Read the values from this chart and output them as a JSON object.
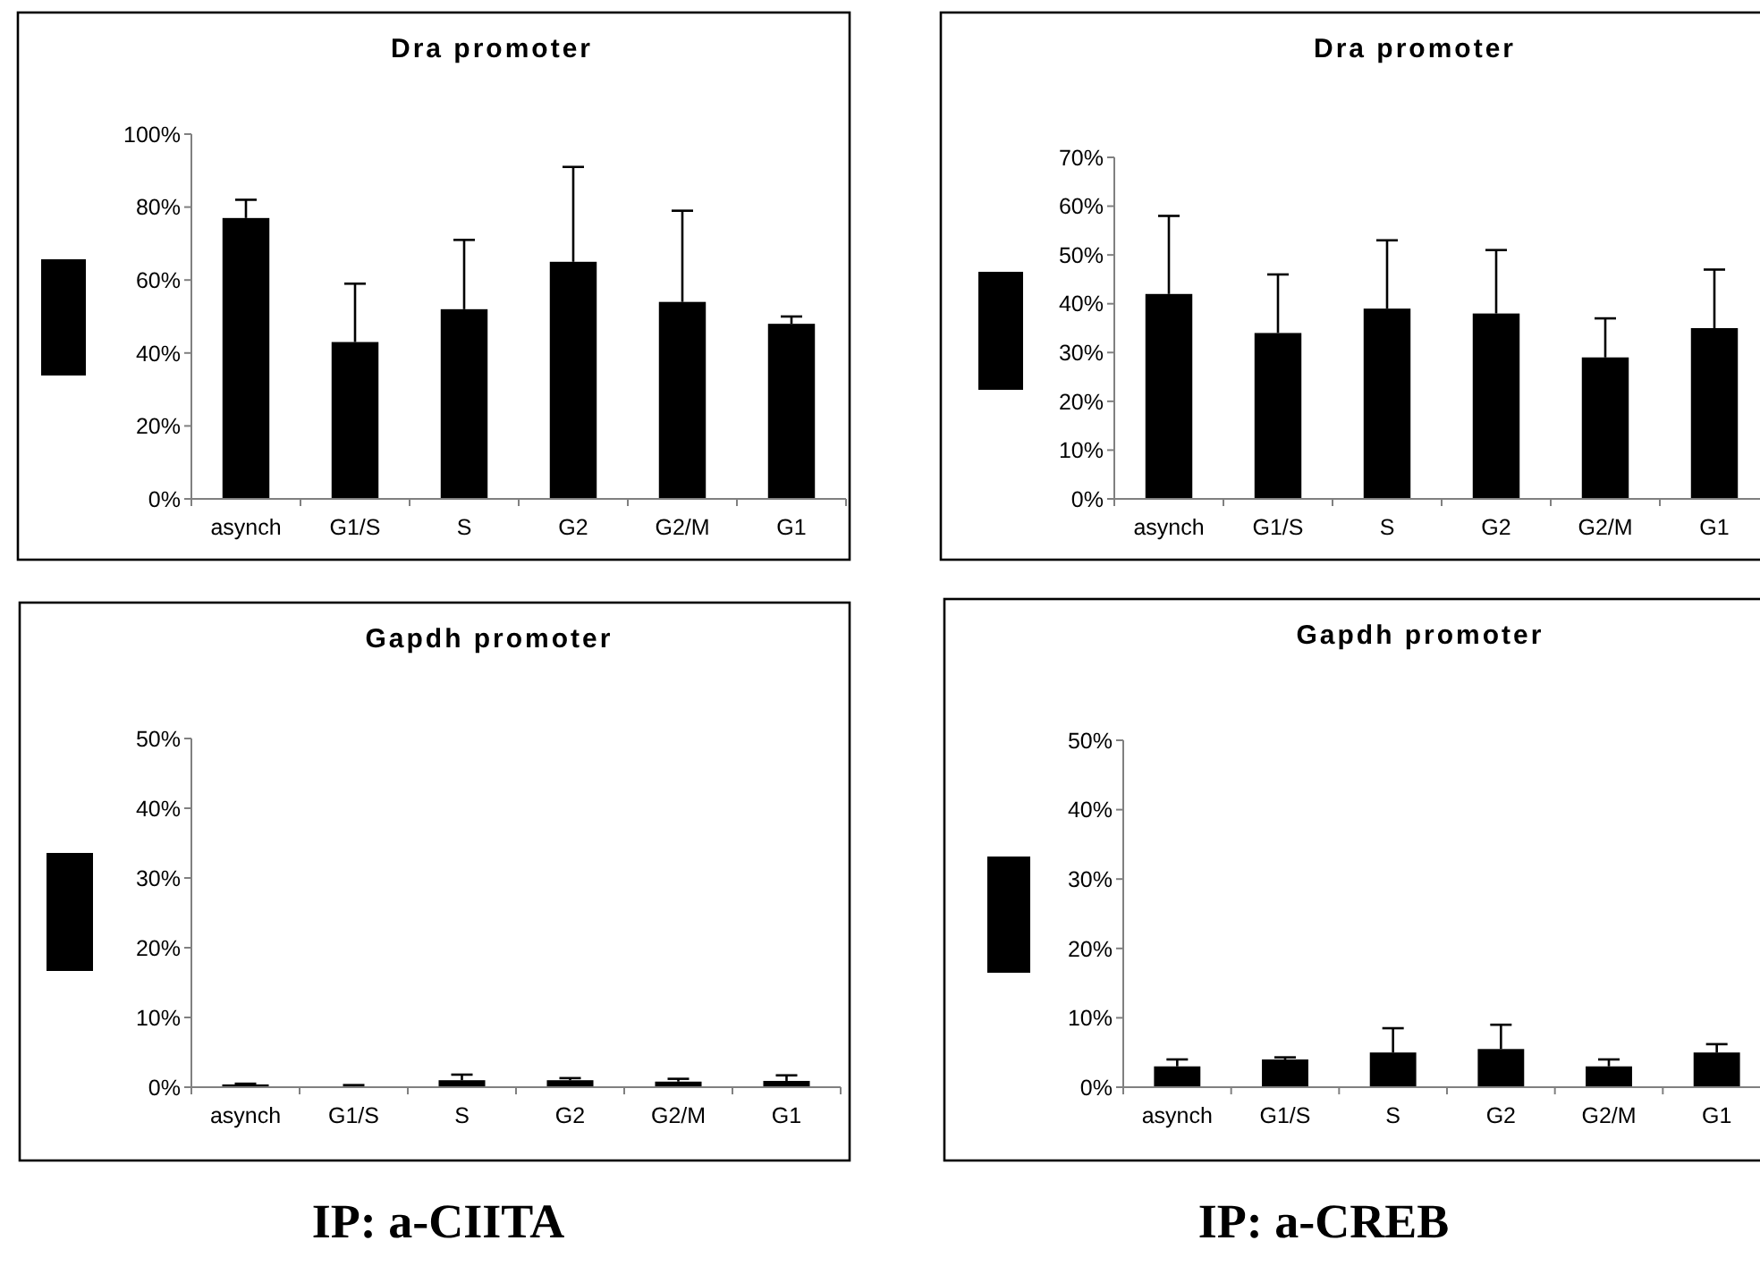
{
  "chart_data": [
    {
      "type": "bar",
      "title": "Dra promoter",
      "categories": [
        "asynch",
        "G1/S",
        "S",
        "G2",
        "G2/M",
        "G1"
      ],
      "color": "#000000",
      "values": [
        77,
        43,
        52,
        65,
        54,
        48
      ],
      "errors": [
        [
          77,
          82
        ],
        [
          43,
          59
        ],
        [
          52,
          71
        ],
        [
          65,
          91
        ],
        [
          54,
          79
        ],
        [
          48,
          50
        ]
      ],
      "ylim": [
        0,
        100
      ],
      "yticks": [
        {
          "value": 0,
          "label": "0%"
        },
        {
          "value": 20,
          "label": "20%"
        },
        {
          "value": 40,
          "label": "40%"
        },
        {
          "value": 60,
          "label": "60%"
        },
        {
          "value": 80,
          "label": "80%"
        },
        {
          "value": 100,
          "label": "100%"
        }
      ]
    },
    {
      "type": "bar",
      "title": "Dra promoter",
      "categories": [
        "asynch",
        "G1/S",
        "S",
        "G2",
        "G2/M",
        "G1"
      ],
      "color": "#000000",
      "values": [
        42,
        34,
        39,
        38,
        29,
        35
      ],
      "errors": [
        [
          42,
          58
        ],
        [
          34,
          46
        ],
        [
          39,
          53
        ],
        [
          38,
          51
        ],
        [
          29,
          37
        ],
        [
          35,
          47
        ]
      ],
      "ylim": [
        0,
        70
      ],
      "yticks": [
        {
          "value": 0,
          "label": "0%"
        },
        {
          "value": 10,
          "label": "10%"
        },
        {
          "value": 20,
          "label": "20%"
        },
        {
          "value": 30,
          "label": "30%"
        },
        {
          "value": 40,
          "label": "40%"
        },
        {
          "value": 50,
          "label": "50%"
        },
        {
          "value": 60,
          "label": "60%"
        },
        {
          "value": 70,
          "label": "70%"
        }
      ]
    },
    {
      "type": "bar",
      "title": "Gapdh promoter",
      "categories": [
        "asynch",
        "G1/S",
        "S",
        "G2",
        "G2/M",
        "G1"
      ],
      "color": "#000000",
      "values": [
        0.4,
        0,
        1,
        1,
        0.8,
        0.9
      ],
      "errors": [
        [
          0.4,
          0.5
        ],
        [
          0,
          0.3
        ],
        [
          1,
          1.8
        ],
        [
          1,
          1.3
        ],
        [
          0.8,
          1.2
        ],
        [
          0.9,
          1.7
        ]
      ],
      "ylim": [
        0,
        50
      ],
      "yticks": [
        {
          "value": 0,
          "label": "0%"
        },
        {
          "value": 10,
          "label": "10%"
        },
        {
          "value": 20,
          "label": "20%"
        },
        {
          "value": 30,
          "label": "30%"
        },
        {
          "value": 40,
          "label": "40%"
        },
        {
          "value": 50,
          "label": "50%"
        }
      ],
      "annotations": [
        "IP: a-CIITA"
      ]
    },
    {
      "type": "bar",
      "title": "Gapdh promoter",
      "categories": [
        "asynch",
        "G1/S",
        "S",
        "G2",
        "G2/M",
        "G1"
      ],
      "color": "#000000",
      "values": [
        3,
        4,
        5,
        5.5,
        3,
        5
      ],
      "errors": [
        [
          3,
          4
        ],
        [
          4,
          4.3
        ],
        [
          5,
          8.5
        ],
        [
          5.5,
          9
        ],
        [
          3,
          4
        ],
        [
          5,
          6.2
        ]
      ],
      "ylim": [
        0,
        50
      ],
      "yticks": [
        {
          "value": 0,
          "label": "0%"
        },
        {
          "value": 10,
          "label": "10%"
        },
        {
          "value": 20,
          "label": "20%"
        },
        {
          "value": 30,
          "label": "30%"
        },
        {
          "value": 40,
          "label": "40%"
        },
        {
          "value": 50,
          "label": "50%"
        }
      ],
      "annotations": [
        "IP: a-CREB"
      ]
    }
  ]
}
